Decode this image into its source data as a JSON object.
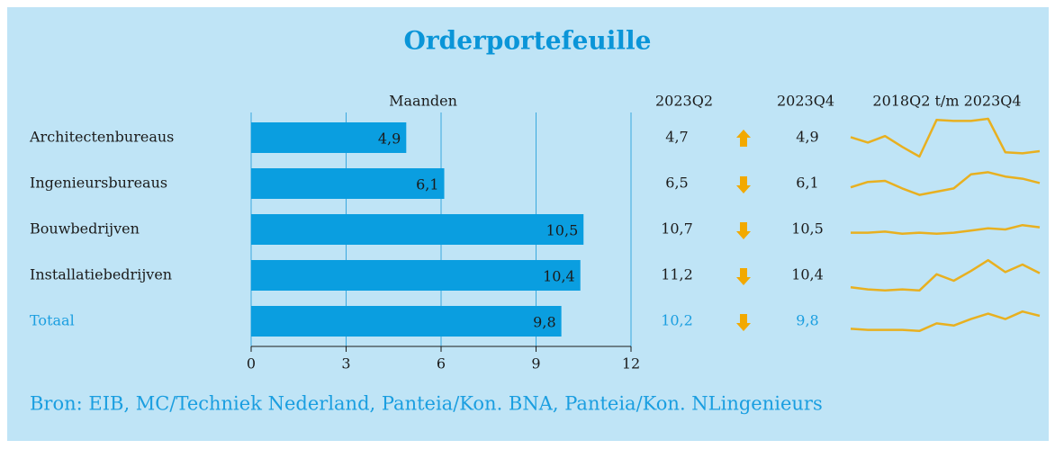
{
  "chart_data": {
    "type": "bar",
    "orientation": "horizontal",
    "title": "Orderportefeuille",
    "value_axis_label": "Maanden",
    "categories": [
      "Architectenbureaus",
      "Ingenieursbureaus",
      "Bouwbedrijven",
      "Installatiebedrijven",
      "Totaal"
    ],
    "values": [
      4.9,
      6.1,
      10.5,
      10.4,
      9.8
    ],
    "value_labels": [
      "4,9",
      "6,1",
      "10,5",
      "10,4",
      "9,8"
    ],
    "color": "#0a9ee0",
    "total_color": "#1a9ee0",
    "xlim": [
      0,
      12
    ],
    "xticks": [
      0,
      3,
      6,
      9,
      12
    ],
    "grid": true,
    "q2_header": "2023Q2",
    "q2_values": [
      4.7,
      6.5,
      10.7,
      11.2,
      10.2
    ],
    "q2_value_labels": [
      "4,7",
      "6,5",
      "10,7",
      "11,2",
      "10,2"
    ],
    "q4_header": "2023Q4",
    "arrow_color": "#f2a900",
    "sparkline_header": "2018Q2 t/m 2023Q4",
    "sparkline_color": "#e8b020",
    "sparklines": [
      [
        6.2,
        5.7,
        6.3,
        5.3,
        4.4,
        7.8,
        7.7,
        7.7,
        7.9,
        4.8,
        4.7,
        4.9
      ],
      [
        5.7,
        6.2,
        6.3,
        5.6,
        5.0,
        5.3,
        5.6,
        6.9,
        7.1,
        6.7,
        6.5,
        6.1
      ],
      [
        10.0,
        10.0,
        10.1,
        9.9,
        10.0,
        9.9,
        10.0,
        10.2,
        10.4,
        10.3,
        10.7,
        10.5
      ],
      [
        9.1,
        8.9,
        8.8,
        8.9,
        8.8,
        10.3,
        9.7,
        10.6,
        11.6,
        10.5,
        11.2,
        10.4
      ],
      [
        8.6,
        8.5,
        8.5,
        8.5,
        8.4,
        9.1,
        8.9,
        9.5,
        10.0,
        9.5,
        10.2,
        9.8
      ]
    ],
    "source": "Bron: EIB, MC/Techniek Nederland, Panteia/Kon. BNA, Panteia/Kon. NLingenieurs"
  }
}
